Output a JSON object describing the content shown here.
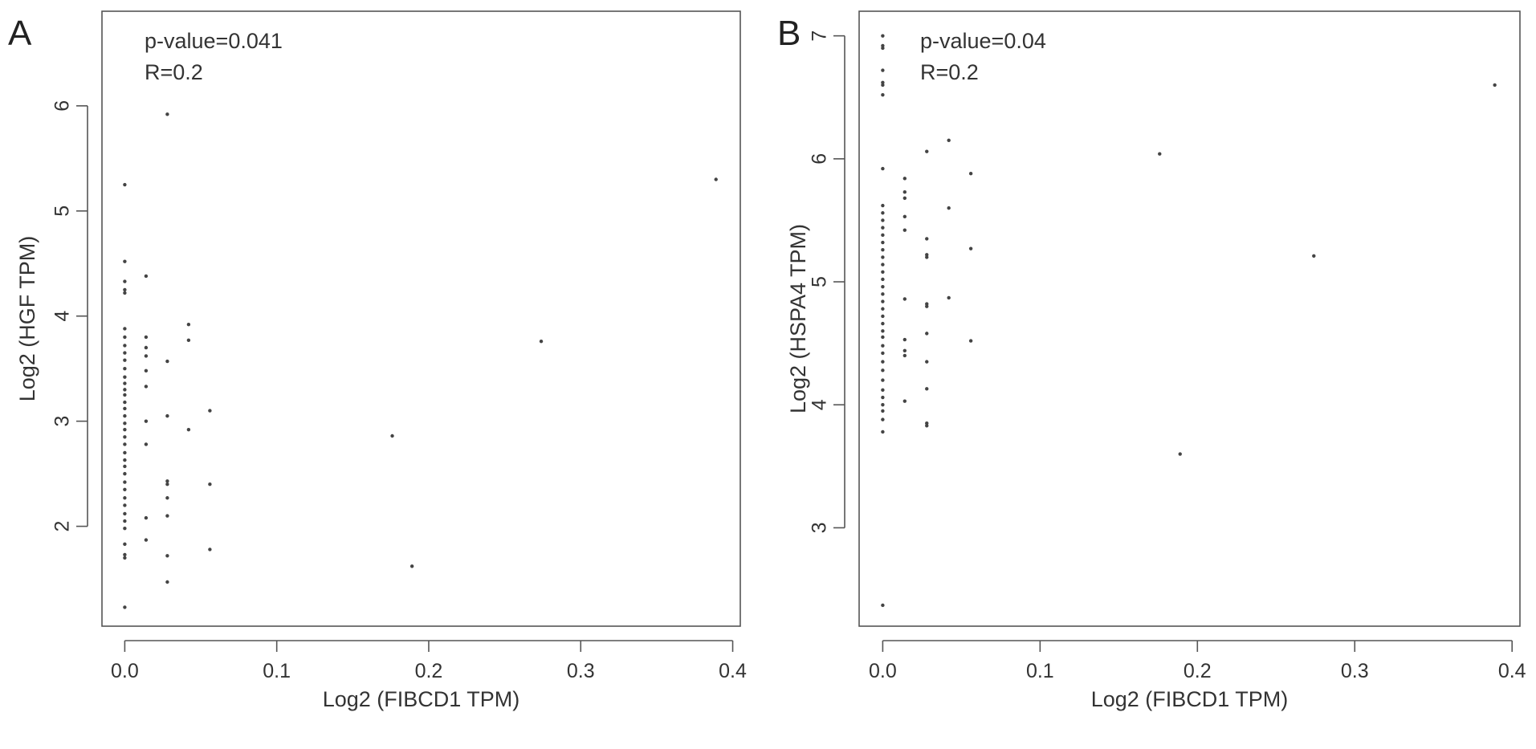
{
  "colors": {
    "axis": "#555555",
    "text": "#333333",
    "point": "#444444"
  },
  "chart_data": [
    {
      "panel_label": "A",
      "type": "scatter",
      "title": "",
      "xlabel": "Log2 (FIBCD1 TPM)",
      "ylabel": "Log2 (HGF TPM)",
      "xlim": [
        -0.015,
        0.405
      ],
      "ylim": [
        1.05,
        6.9
      ],
      "xticks": [
        0.0,
        0.1,
        0.2,
        0.3,
        0.4
      ],
      "xtick_labels": [
        "0.0",
        "0.1",
        "0.2",
        "0.3",
        "0.4"
      ],
      "yticks": [
        2,
        3,
        4,
        5,
        6
      ],
      "ytick_labels": [
        "2",
        "3",
        "4",
        "5",
        "6"
      ],
      "annotations": [
        "p-value=0.041",
        "R=0.2"
      ],
      "grid": false,
      "points": [
        [
          0.0,
          1.23
        ],
        [
          0.0,
          1.7
        ],
        [
          0.0,
          1.73
        ],
        [
          0.0,
          1.83
        ],
        [
          0.0,
          1.98
        ],
        [
          0.0,
          2.05
        ],
        [
          0.0,
          2.12
        ],
        [
          0.0,
          2.2
        ],
        [
          0.0,
          2.27
        ],
        [
          0.0,
          2.35
        ],
        [
          0.0,
          2.42
        ],
        [
          0.0,
          2.5
        ],
        [
          0.0,
          2.57
        ],
        [
          0.0,
          2.63
        ],
        [
          0.0,
          2.7
        ],
        [
          0.0,
          2.78
        ],
        [
          0.0,
          2.85
        ],
        [
          0.0,
          2.92
        ],
        [
          0.0,
          2.98
        ],
        [
          0.0,
          3.05
        ],
        [
          0.0,
          3.12
        ],
        [
          0.0,
          3.18
        ],
        [
          0.0,
          3.25
        ],
        [
          0.0,
          3.3
        ],
        [
          0.0,
          3.36
        ],
        [
          0.0,
          3.42
        ],
        [
          0.0,
          3.5
        ],
        [
          0.0,
          3.58
        ],
        [
          0.0,
          3.65
        ],
        [
          0.0,
          3.72
        ],
        [
          0.0,
          3.8
        ],
        [
          0.0,
          3.88
        ],
        [
          0.0,
          4.22
        ],
        [
          0.0,
          4.25
        ],
        [
          0.0,
          4.33
        ],
        [
          0.0,
          4.52
        ],
        [
          0.0,
          5.25
        ],
        [
          0.014,
          1.87
        ],
        [
          0.014,
          2.08
        ],
        [
          0.014,
          2.78
        ],
        [
          0.014,
          3.0
        ],
        [
          0.014,
          3.33
        ],
        [
          0.014,
          3.48
        ],
        [
          0.014,
          3.62
        ],
        [
          0.014,
          3.7
        ],
        [
          0.014,
          3.8
        ],
        [
          0.014,
          4.38
        ],
        [
          0.028,
          1.47
        ],
        [
          0.028,
          1.72
        ],
        [
          0.028,
          2.1
        ],
        [
          0.028,
          2.27
        ],
        [
          0.028,
          2.4
        ],
        [
          0.028,
          2.43
        ],
        [
          0.028,
          3.05
        ],
        [
          0.028,
          3.57
        ],
        [
          0.028,
          5.92
        ],
        [
          0.042,
          2.92
        ],
        [
          0.042,
          3.77
        ],
        [
          0.042,
          3.92
        ],
        [
          0.056,
          1.78
        ],
        [
          0.056,
          2.4
        ],
        [
          0.056,
          3.1
        ],
        [
          0.176,
          2.86
        ],
        [
          0.189,
          1.62
        ],
        [
          0.274,
          3.76
        ],
        [
          0.389,
          5.3
        ]
      ]
    },
    {
      "panel_label": "B",
      "type": "scatter",
      "title": "",
      "xlabel": "Log2 (FIBCD1 TPM)",
      "ylabel": "Log2 (HSPA4 TPM)",
      "xlimits_note_free": true,
      "xlim": [
        -0.015,
        0.405
      ],
      "ylim": [
        2.2,
        7.2
      ],
      "xticks": [
        0.0,
        0.1,
        0.2,
        0.3,
        0.4
      ],
      "xtick_labels": [
        "0.0",
        "0.1",
        "0.2",
        "0.3",
        "0.4"
      ],
      "yticks": [
        3,
        4,
        5,
        6,
        7
      ],
      "ytick_labels": [
        "3",
        "4",
        "5",
        "6",
        "7"
      ],
      "annotations": [
        "p-value=0.04",
        "R=0.2"
      ],
      "grid": false,
      "points": [
        [
          0.0,
          2.37
        ],
        [
          0.0,
          3.78
        ],
        [
          0.0,
          3.88
        ],
        [
          0.0,
          3.95
        ],
        [
          0.0,
          4.0
        ],
        [
          0.0,
          4.06
        ],
        [
          0.0,
          4.12
        ],
        [
          0.0,
          4.2
        ],
        [
          0.0,
          4.28
        ],
        [
          0.0,
          4.35
        ],
        [
          0.0,
          4.42
        ],
        [
          0.0,
          4.48
        ],
        [
          0.0,
          4.55
        ],
        [
          0.0,
          4.6
        ],
        [
          0.0,
          4.66
        ],
        [
          0.0,
          4.72
        ],
        [
          0.0,
          4.78
        ],
        [
          0.0,
          4.84
        ],
        [
          0.0,
          4.9
        ],
        [
          0.0,
          4.96
        ],
        [
          0.0,
          5.02
        ],
        [
          0.0,
          5.08
        ],
        [
          0.0,
          5.14
        ],
        [
          0.0,
          5.2
        ],
        [
          0.0,
          5.26
        ],
        [
          0.0,
          5.32
        ],
        [
          0.0,
          5.38
        ],
        [
          0.0,
          5.44
        ],
        [
          0.0,
          5.5
        ],
        [
          0.0,
          5.56
        ],
        [
          0.0,
          5.62
        ],
        [
          0.0,
          5.92
        ],
        [
          0.0,
          6.52
        ],
        [
          0.0,
          6.6
        ],
        [
          0.0,
          6.62
        ],
        [
          0.0,
          6.72
        ],
        [
          0.0,
          6.9
        ],
        [
          0.0,
          6.92
        ],
        [
          0.0,
          7.0
        ],
        [
          0.014,
          4.03
        ],
        [
          0.014,
          4.4
        ],
        [
          0.014,
          4.44
        ],
        [
          0.014,
          4.53
        ],
        [
          0.014,
          4.86
        ],
        [
          0.014,
          5.42
        ],
        [
          0.014,
          5.53
        ],
        [
          0.014,
          5.68
        ],
        [
          0.014,
          5.73
        ],
        [
          0.014,
          5.84
        ],
        [
          0.028,
          3.83
        ],
        [
          0.028,
          3.85
        ],
        [
          0.028,
          4.13
        ],
        [
          0.028,
          4.35
        ],
        [
          0.028,
          4.58
        ],
        [
          0.028,
          4.8
        ],
        [
          0.028,
          4.82
        ],
        [
          0.028,
          5.2
        ],
        [
          0.028,
          5.22
        ],
        [
          0.028,
          5.35
        ],
        [
          0.028,
          6.06
        ],
        [
          0.042,
          4.87
        ],
        [
          0.042,
          5.6
        ],
        [
          0.042,
          6.15
        ],
        [
          0.056,
          4.52
        ],
        [
          0.056,
          5.27
        ],
        [
          0.056,
          5.88
        ],
        [
          0.176,
          6.04
        ],
        [
          0.189,
          3.6
        ],
        [
          0.274,
          5.21
        ],
        [
          0.389,
          6.6
        ]
      ]
    }
  ]
}
